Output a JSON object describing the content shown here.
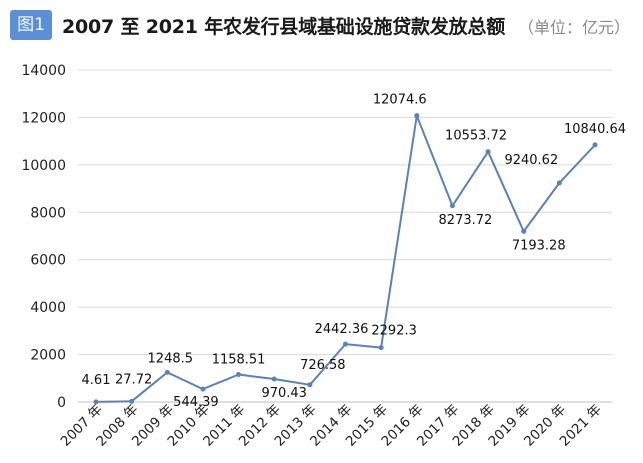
{
  "header": {
    "figure_badge": "图1",
    "title": "2007 至 2021 年农发行县域基础设施贷款发放总额",
    "unit": "（单位：亿元）"
  },
  "colors": {
    "line": "#5b82b8",
    "grid": "#d9d9d9",
    "badge": "#5b8fd8"
  },
  "chart_data": {
    "type": "line",
    "title": "2007 至 2021 年农发行县域基础设施贷款发放总额",
    "xlabel": "",
    "ylabel": "",
    "unit": "亿元",
    "ylim": [
      0,
      14000
    ],
    "yticks": [
      "0",
      "2000",
      "4000",
      "6000",
      "8000",
      "10000",
      "12000",
      "14000"
    ],
    "grid": true,
    "categories": [
      "2007 年",
      "2008 年",
      "2009 年",
      "2010 年",
      "2011 年",
      "2012 年",
      "2013 年",
      "2014 年",
      "2015 年",
      "2016 年",
      "2017 年",
      "2018 年",
      "2019 年",
      "2020 年",
      "2021 年"
    ],
    "values": [
      4.61,
      27.72,
      1248.5,
      544.39,
      1158.51,
      970.43,
      726.58,
      2442.36,
      2292.3,
      12074.6,
      8273.72,
      10553.72,
      7193.28,
      9240.62,
      10840.64
    ],
    "data_labels": [
      "4.61",
      "27.72",
      "1248.5",
      "544.39",
      "1158.51",
      "970.43",
      "726.58",
      "2442.36",
      "2292.3",
      "12074.6",
      "8273.72",
      "10553.72",
      "7193.28",
      "9240.62",
      "10840.64"
    ]
  }
}
